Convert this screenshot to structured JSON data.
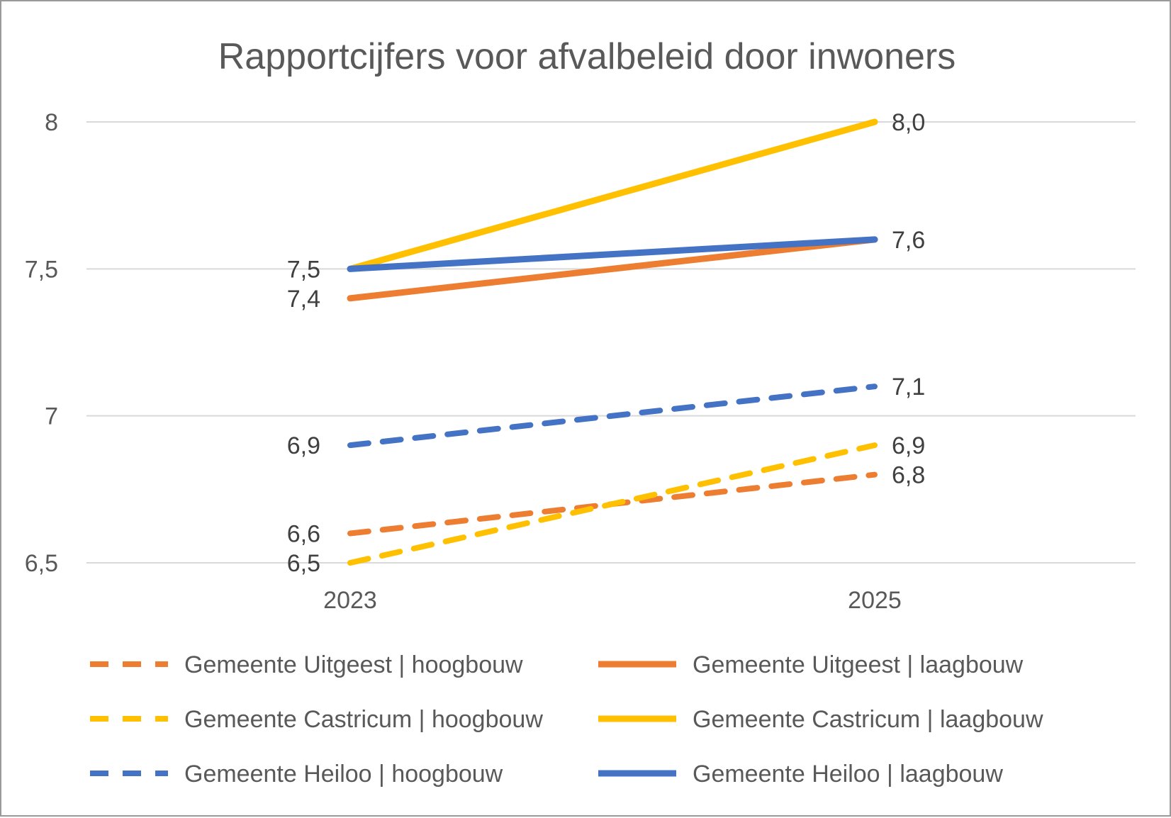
{
  "chart_data": {
    "type": "line",
    "title": "Rapportcijfers voor afvalbeleid door inwoners",
    "categories": [
      "2023",
      "2025"
    ],
    "ylim": [
      6.5,
      8
    ],
    "yticks": [
      "6,5",
      "7",
      "7,5",
      "8"
    ],
    "grid": true,
    "legend_position": "bottom",
    "series": [
      {
        "name": "Gemeente Uitgeest | hoogbouw",
        "values": [
          6.6,
          6.8
        ],
        "labels": [
          "6,6",
          "6,8"
        ],
        "color": "#ED7D31",
        "dash": true
      },
      {
        "name": "Gemeente Uitgeest | laagbouw",
        "values": [
          7.4,
          7.6
        ],
        "labels": [
          "7,4",
          ""
        ],
        "color": "#ED7D31",
        "dash": false
      },
      {
        "name": "Gemeente Castricum | hoogbouw",
        "values": [
          6.5,
          6.9
        ],
        "labels": [
          "6,5",
          "6,9"
        ],
        "color": "#FFC000",
        "dash": true
      },
      {
        "name": "Gemeente Castricum | laagbouw",
        "values": [
          7.5,
          8.0
        ],
        "labels": [
          "",
          "8,0"
        ],
        "color": "#FFC000",
        "dash": false
      },
      {
        "name": "Gemeente Heiloo | hoogbouw",
        "values": [
          6.9,
          7.1
        ],
        "labels": [
          "6,9",
          "7,1"
        ],
        "color": "#4472C4",
        "dash": true
      },
      {
        "name": "Gemeente Heiloo | laagbouw",
        "values": [
          7.5,
          7.6
        ],
        "labels": [
          "7,5",
          "7,6"
        ],
        "color": "#4472C4",
        "dash": false
      }
    ]
  }
}
